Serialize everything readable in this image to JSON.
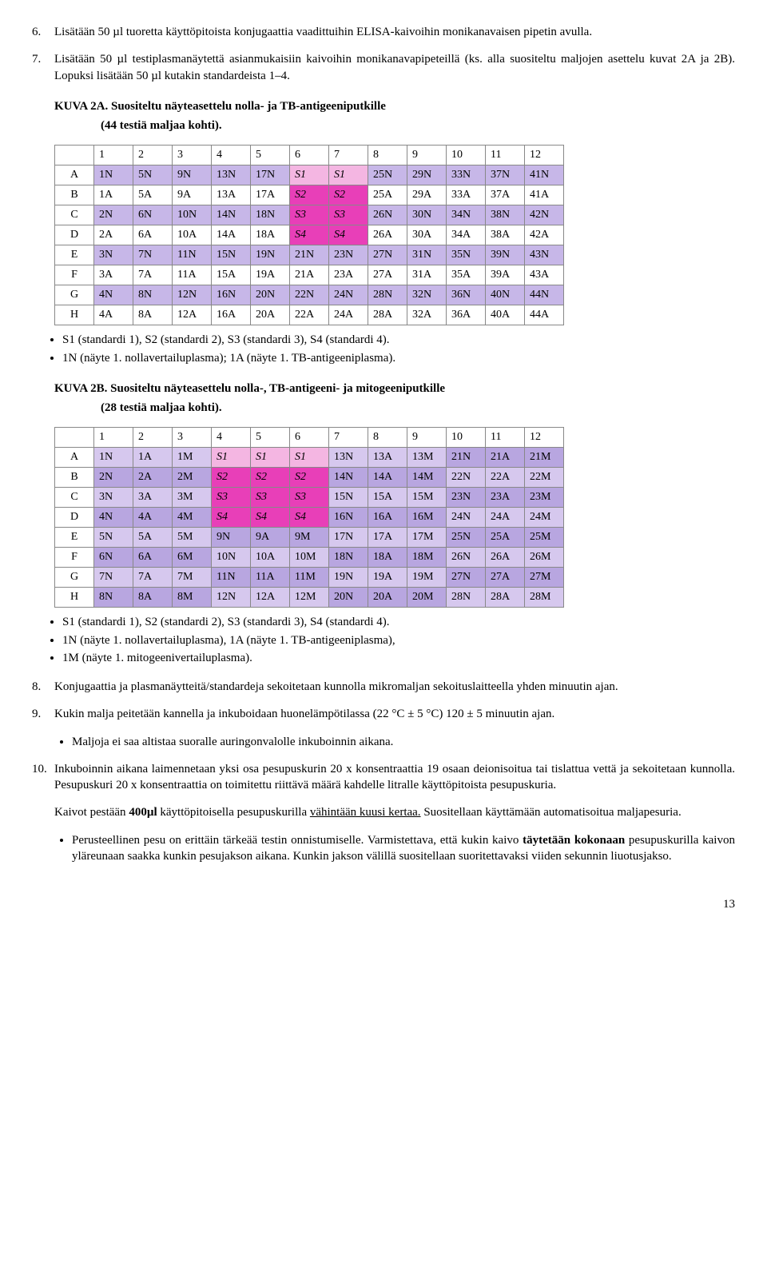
{
  "colors": {
    "lavA": "#c7b7e8",
    "lavB": "#d6c8ee",
    "lavC": "#b8a6e0",
    "pinkLight": "#f4b6e2",
    "magenta": "#e83fb8",
    "white": "#ffffff"
  },
  "para6": {
    "num": "6.",
    "text": "Lisätään 50 µl tuoretta käyttöpitoista konjugaattia vaadittuihin ELISA-kaivoihin monikanavaisen pipetin avulla."
  },
  "para7": {
    "num": "7.",
    "text": "Lisätään 50 µl testiplasmanäytettä asianmukaisiin kaivoihin monikanavapipeteillä (ks. alla suositeltu maljojen asettelu kuvat 2A ja 2B).  Lopuksi lisätään 50 µl kutakin standardeista 1–4."
  },
  "kuva2a": {
    "title": "KUVA 2A.  Suositeltu näyteasettelu nolla- ja TB-antigeeniputkille",
    "sub": "(44 testiä maljaa kohti).",
    "cols": [
      "1",
      "2",
      "3",
      "4",
      "5",
      "6",
      "7",
      "8",
      "9",
      "10",
      "11",
      "12"
    ],
    "rows": [
      "A",
      "B",
      "C",
      "D",
      "E",
      "F",
      "G",
      "H"
    ],
    "cells": [
      [
        "1N",
        "5N",
        "9N",
        "13N",
        "17N",
        "S1",
        "S1",
        "25N",
        "29N",
        "33N",
        "37N",
        "41N"
      ],
      [
        "1A",
        "5A",
        "9A",
        "13A",
        "17A",
        "S2",
        "S2",
        "25A",
        "29A",
        "33A",
        "37A",
        "41A"
      ],
      [
        "2N",
        "6N",
        "10N",
        "14N",
        "18N",
        "S3",
        "S3",
        "26N",
        "30N",
        "34N",
        "38N",
        "42N"
      ],
      [
        "2A",
        "6A",
        "10A",
        "14A",
        "18A",
        "S4",
        "S4",
        "26A",
        "30A",
        "34A",
        "38A",
        "42A"
      ],
      [
        "3N",
        "7N",
        "11N",
        "15N",
        "19N",
        "21N",
        "23N",
        "27N",
        "31N",
        "35N",
        "39N",
        "43N"
      ],
      [
        "3A",
        "7A",
        "11A",
        "15A",
        "19A",
        "21A",
        "23A",
        "27A",
        "31A",
        "35A",
        "39A",
        "43A"
      ],
      [
        "4N",
        "8N",
        "12N",
        "16N",
        "20N",
        "22N",
        "24N",
        "28N",
        "32N",
        "36N",
        "40N",
        "44N"
      ],
      [
        "4A",
        "8A",
        "12A",
        "16A",
        "20A",
        "22A",
        "24A",
        "28A",
        "32A",
        "36A",
        "40A",
        "44A"
      ]
    ],
    "cellColors": [
      [
        "lavA",
        "lavA",
        "lavA",
        "lavA",
        "lavA",
        "pinkLight",
        "pinkLight",
        "lavA",
        "lavA",
        "lavA",
        "lavA",
        "lavA"
      ],
      [
        "white",
        "white",
        "white",
        "white",
        "white",
        "magenta",
        "magenta",
        "white",
        "white",
        "white",
        "white",
        "white"
      ],
      [
        "lavA",
        "lavA",
        "lavA",
        "lavA",
        "lavA",
        "magenta",
        "magenta",
        "lavA",
        "lavA",
        "lavA",
        "lavA",
        "lavA"
      ],
      [
        "white",
        "white",
        "white",
        "white",
        "white",
        "magenta",
        "magenta",
        "white",
        "white",
        "white",
        "white",
        "white"
      ],
      [
        "lavA",
        "lavA",
        "lavA",
        "lavA",
        "lavA",
        "lavA",
        "lavA",
        "lavA",
        "lavA",
        "lavA",
        "lavA",
        "lavA"
      ],
      [
        "white",
        "white",
        "white",
        "white",
        "white",
        "white",
        "white",
        "white",
        "white",
        "white",
        "white",
        "white"
      ],
      [
        "lavA",
        "lavA",
        "lavA",
        "lavA",
        "lavA",
        "lavA",
        "lavA",
        "lavA",
        "lavA",
        "lavA",
        "lavA",
        "lavA"
      ],
      [
        "white",
        "white",
        "white",
        "white",
        "white",
        "white",
        "white",
        "white",
        "white",
        "white",
        "white",
        "white"
      ]
    ],
    "bullets": [
      "S1 (standardi 1), S2 (standardi 2), S3 (standardi 3), S4 (standardi 4).",
      "1N (näyte 1. nollavertailuplasma); 1A (näyte 1. TB-antigeeniplasma)."
    ]
  },
  "kuva2b": {
    "title": "KUVA 2B.  Suositeltu näyteasettelu nolla-, TB-antigeeni- ja mitogeeniputkille",
    "sub": "(28 testiä maljaa kohti).",
    "cols": [
      "1",
      "2",
      "3",
      "4",
      "5",
      "6",
      "7",
      "8",
      "9",
      "10",
      "11",
      "12"
    ],
    "rows": [
      "A",
      "B",
      "C",
      "D",
      "E",
      "F",
      "G",
      "H"
    ],
    "cells": [
      [
        "1N",
        "1A",
        "1M",
        "S1",
        "S1",
        "S1",
        "13N",
        "13A",
        "13M",
        "21N",
        "21A",
        "21M"
      ],
      [
        "2N",
        "2A",
        "2M",
        "S2",
        "S2",
        "S2",
        "14N",
        "14A",
        "14M",
        "22N",
        "22A",
        "22M"
      ],
      [
        "3N",
        "3A",
        "3M",
        "S3",
        "S3",
        "S3",
        "15N",
        "15A",
        "15M",
        "23N",
        "23A",
        "23M"
      ],
      [
        "4N",
        "4A",
        "4M",
        "S4",
        "S4",
        "S4",
        "16N",
        "16A",
        "16M",
        "24N",
        "24A",
        "24M"
      ],
      [
        "5N",
        "5A",
        "5M",
        "9N",
        "9A",
        "9M",
        "17N",
        "17A",
        "17M",
        "25N",
        "25A",
        "25M"
      ],
      [
        "6N",
        "6A",
        "6M",
        "10N",
        "10A",
        "10M",
        "18N",
        "18A",
        "18M",
        "26N",
        "26A",
        "26M"
      ],
      [
        "7N",
        "7A",
        "7M",
        "11N",
        "11A",
        "11M",
        "19N",
        "19A",
        "19M",
        "27N",
        "27A",
        "27M"
      ],
      [
        "8N",
        "8A",
        "8M",
        "12N",
        "12A",
        "12M",
        "20N",
        "20A",
        "20M",
        "28N",
        "28A",
        "28M"
      ]
    ],
    "cellColors": [
      [
        "lavB",
        "lavB",
        "lavB",
        "pinkLight",
        "pinkLight",
        "pinkLight",
        "lavB",
        "lavB",
        "lavB",
        "lavC",
        "lavC",
        "lavC"
      ],
      [
        "lavC",
        "lavC",
        "lavC",
        "magenta",
        "magenta",
        "magenta",
        "lavC",
        "lavC",
        "lavC",
        "lavB",
        "lavB",
        "lavB"
      ],
      [
        "lavB",
        "lavB",
        "lavB",
        "magenta",
        "magenta",
        "magenta",
        "lavB",
        "lavB",
        "lavB",
        "lavC",
        "lavC",
        "lavC"
      ],
      [
        "lavC",
        "lavC",
        "lavC",
        "magenta",
        "magenta",
        "magenta",
        "lavC",
        "lavC",
        "lavC",
        "lavB",
        "lavB",
        "lavB"
      ],
      [
        "lavB",
        "lavB",
        "lavB",
        "lavC",
        "lavC",
        "lavC",
        "lavB",
        "lavB",
        "lavB",
        "lavC",
        "lavC",
        "lavC"
      ],
      [
        "lavC",
        "lavC",
        "lavC",
        "lavB",
        "lavB",
        "lavB",
        "lavC",
        "lavC",
        "lavC",
        "lavB",
        "lavB",
        "lavB"
      ],
      [
        "lavB",
        "lavB",
        "lavB",
        "lavC",
        "lavC",
        "lavC",
        "lavB",
        "lavB",
        "lavB",
        "lavC",
        "lavC",
        "lavC"
      ],
      [
        "lavC",
        "lavC",
        "lavC",
        "lavB",
        "lavB",
        "lavB",
        "lavC",
        "lavC",
        "lavC",
        "lavB",
        "lavB",
        "lavB"
      ]
    ],
    "bullets": [
      "S1 (standardi 1), S2 (standardi 2), S3 (standardi 3), S4 (standardi 4).",
      "1N (näyte 1. nollavertailuplasma), 1A (näyte 1. TB-antigeeniplasma),",
      "1M (näyte 1. mitogeenivertailuplasma)."
    ]
  },
  "para8": {
    "num": "8.",
    "text": "Konjugaattia ja plasmanäytteitä/standardeja sekoitetaan kunnolla mikromaljan sekoituslaitteella yhden minuutin ajan."
  },
  "para9": {
    "num": "9.",
    "text": "Kukin malja peitetään kannella ja inkuboidaan huonelämpötilassa (22 °C ± 5 °C) 120 ± 5 minuutin ajan.",
    "bullet": "Maljoja ei saa altistaa suoralle auringonvalolle inkuboinnin aikana."
  },
  "para10": {
    "num": "10.",
    "text": "Inkuboinnin aikana laimennetaan yksi osa pesupuskurin 20 x konsentraattia 19 osaan deionisoitua tai tislattua vettä ja sekoitetaan kunnolla. Pesupuskuri 20 x konsentraattia on toimitettu riittävä määrä kahdelle litralle käyttöpitoista pesupuskuria."
  },
  "wash": {
    "p1a": "Kaivot pestään ",
    "p1b": "400µl",
    "p1c": " käyttöpitoisella pesupuskurilla ",
    "p1d": "vähintään kuusi kertaa.",
    "p1e": "   Suositellaan käyttämään automatisoitua maljapesuria.",
    "bullet": {
      "a": "Perusteellinen pesu on erittäin tärkeää testin onnistumiselle.  Varmistettava, että kukin kaivo ",
      "b": "täytetään kokonaan",
      "c": " pesupuskurilla kaivon yläreunaan saakka kunkin pesujakson aikana. Kunkin jakson välillä suositellaan suoritettavaksi viiden sekunnin liuotusjakso."
    }
  },
  "pagenum": "13"
}
